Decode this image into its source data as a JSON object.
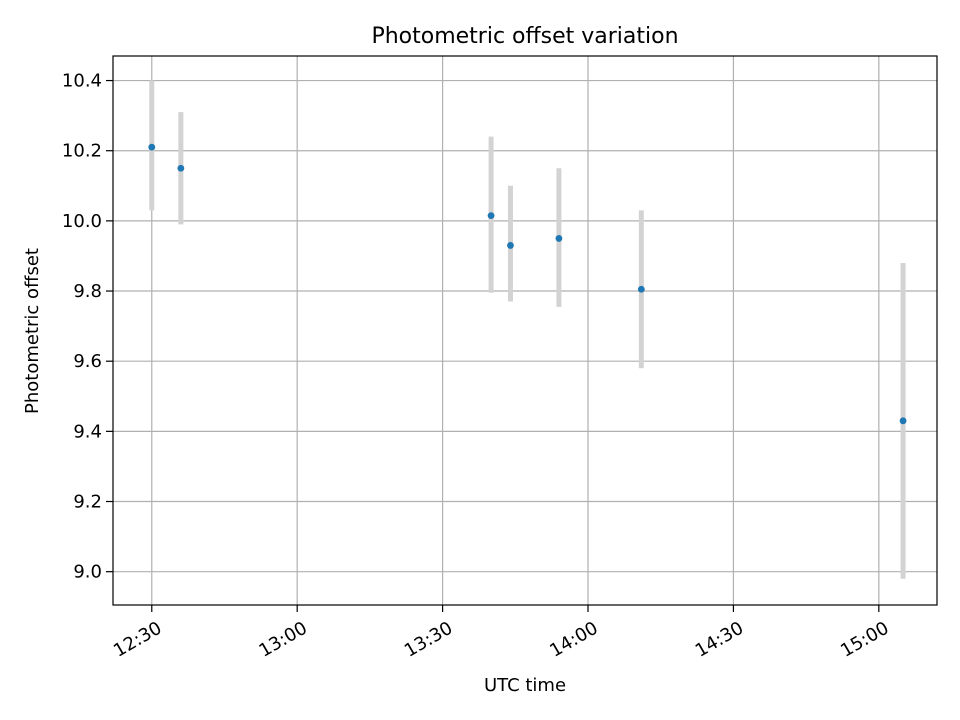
{
  "chart_data": {
    "type": "scatter",
    "title": "Photometric offset variation",
    "xlabel": "UTC time",
    "ylabel": "Photometric offset",
    "x_axis_type": "time",
    "xlim": [
      "12:22",
      "15:12"
    ],
    "ylim": [
      8.905,
      10.47
    ],
    "grid": true,
    "x_ticks": [
      "12:30",
      "13:00",
      "13:30",
      "14:00",
      "14:30",
      "15:00"
    ],
    "y_ticks": [
      9.0,
      9.2,
      9.4,
      9.6,
      9.8,
      10.0,
      10.2,
      10.4
    ],
    "y_tick_labels": [
      "9.0",
      "9.2",
      "9.4",
      "9.6",
      "9.8",
      "10.0",
      "10.2",
      "10.4"
    ],
    "series": [
      {
        "points": [
          {
            "time": "12:30",
            "value": 10.21,
            "err_low": 10.03,
            "err_high": 10.4
          },
          {
            "time": "12:36",
            "value": 10.15,
            "err_low": 9.99,
            "err_high": 10.31
          },
          {
            "time": "13:40",
            "value": 10.015,
            "err_low": 9.795,
            "err_high": 10.24
          },
          {
            "time": "13:44",
            "value": 9.93,
            "err_low": 9.77,
            "err_high": 10.1
          },
          {
            "time": "13:54",
            "value": 9.95,
            "err_low": 9.755,
            "err_high": 10.15
          },
          {
            "time": "14:11",
            "value": 9.805,
            "err_low": 9.58,
            "err_high": 10.03
          },
          {
            "time": "15:05",
            "value": 9.43,
            "err_low": 8.98,
            "err_high": 9.88
          }
        ]
      }
    ],
    "colors": {
      "marker": "#1f77b4",
      "errorbar": "#d3d3d3",
      "grid": "#b0b0b0",
      "axes": "#000000"
    }
  }
}
